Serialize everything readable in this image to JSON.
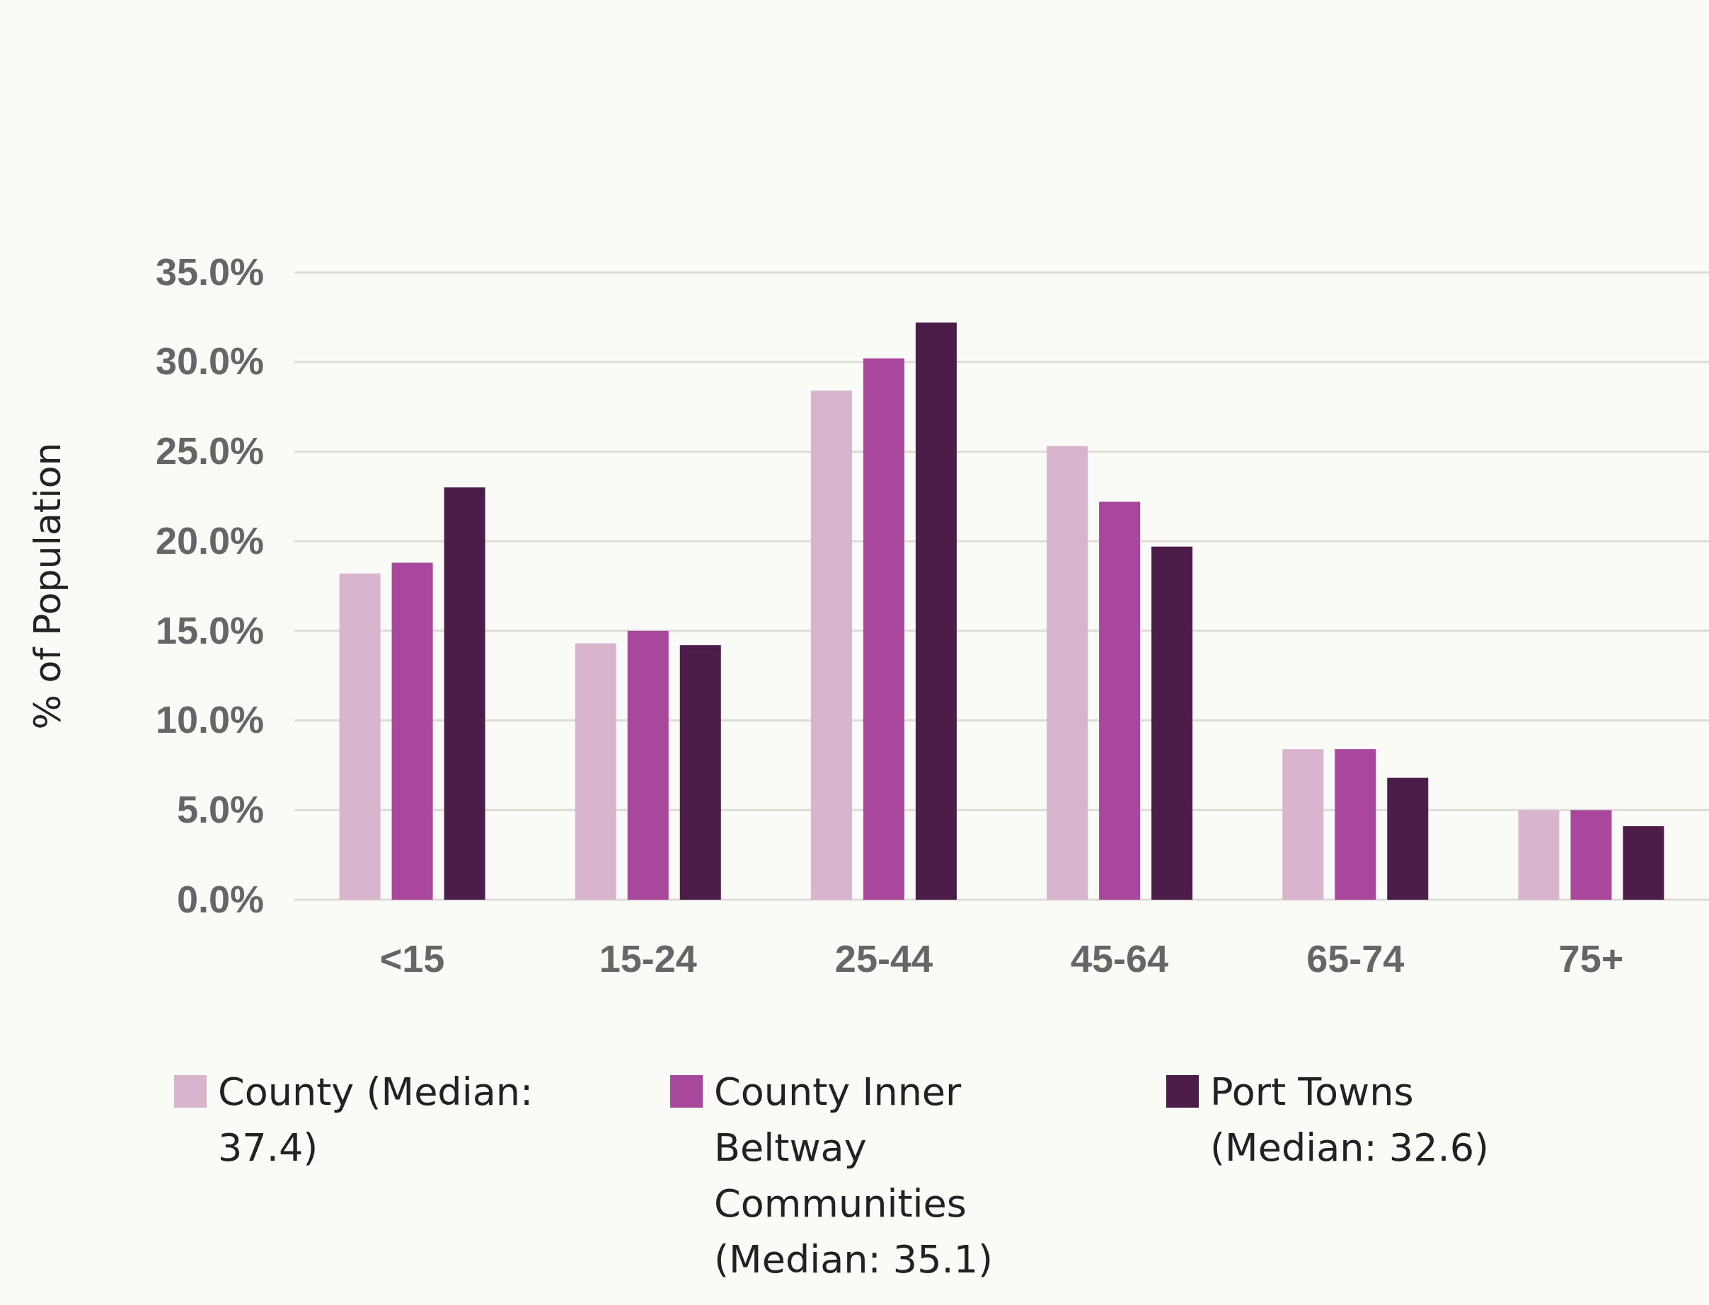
{
  "chart_data": {
    "type": "bar",
    "ylabel": "% of Population",
    "categories": [
      "<15",
      "15-24",
      "25-44",
      "45-64",
      "65-74",
      "75+"
    ],
    "series": [
      {
        "name": "County (Median: 37.4)",
        "color": "#d9b5cd",
        "values": [
          18.2,
          14.3,
          28.4,
          25.3,
          8.4,
          5.0
        ]
      },
      {
        "name": "County Inner Beltway Communities (Median: 35.1)",
        "color": "#a8479c",
        "values": [
          18.8,
          15.0,
          30.2,
          22.2,
          8.4,
          5.0
        ]
      },
      {
        "name": "Port Towns (Median: 32.6)",
        "color": "#4c1d48",
        "values": [
          23.0,
          14.2,
          32.2,
          19.7,
          6.8,
          4.1
        ]
      }
    ],
    "ylim": [
      0,
      35
    ],
    "yticks": [
      {
        "value": 0,
        "label": "0.0%"
      },
      {
        "value": 5,
        "label": "5.0%"
      },
      {
        "value": 10,
        "label": "10.0%"
      },
      {
        "value": 15,
        "label": "15.0%"
      },
      {
        "value": 20,
        "label": "20.0%"
      },
      {
        "value": 25,
        "label": "25.0%"
      },
      {
        "value": 30,
        "label": "30.0%"
      },
      {
        "value": 35,
        "label": "35.0%"
      }
    ],
    "grid": "y",
    "legend": "bottom"
  }
}
